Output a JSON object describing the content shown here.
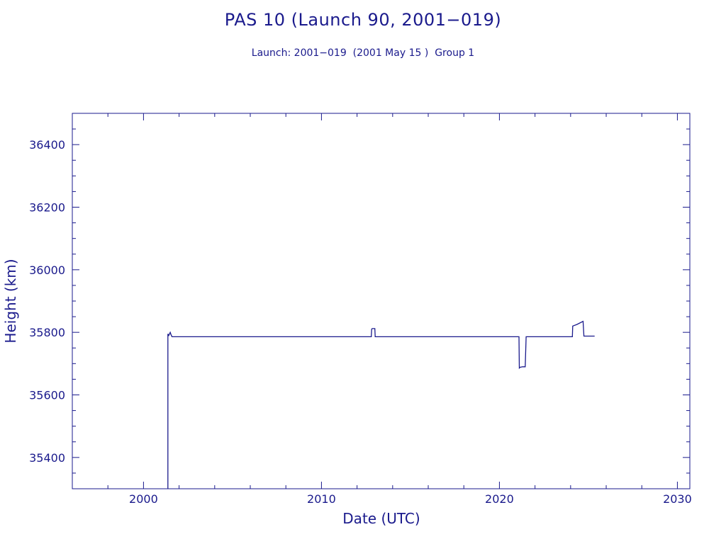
{
  "title": "PAS 10 (Launch 90, 2001−019)",
  "subtitle": "Launch: 2001−019  (2001 May 15 )  Group 1",
  "colors": {
    "axis": "#1a1a8c",
    "line": "#1a1a8c",
    "background": "#ffffff"
  },
  "chart_data": {
    "type": "line",
    "title": "PAS 10 (Launch 90, 2001−019)",
    "subtitle": "Launch: 2001−019  (2001 May 15 )  Group 1",
    "xlabel": "Date (UTC)",
    "ylabel": "Height (km)",
    "xlim": [
      1996,
      2030.7
    ],
    "ylim": [
      35300,
      36500
    ],
    "x_ticks": [
      2000,
      2010,
      2020,
      2030
    ],
    "x_tick_labels": [
      "2000",
      "2010",
      "2020",
      "2030"
    ],
    "y_ticks": [
      35400,
      35600,
      35800,
      36000,
      36200,
      36400
    ],
    "y_tick_labels": [
      "35400",
      "35600",
      "35800",
      "36000",
      "36200",
      "36400"
    ],
    "grid": false,
    "series": [
      {
        "x": [
          2001.37,
          2001.37,
          2001.42,
          2001.5,
          2001.55,
          2001.6,
          2001.8,
          2003.5,
          2006.0,
          2009.0,
          2012.8,
          2012.82,
          2012.85,
          2012.9,
          2013.0,
          2013.02,
          2013.1,
          2016.0,
          2019.0,
          2021.1,
          2021.12,
          2021.15,
          2021.3,
          2021.45,
          2021.5,
          2021.55,
          2022.5,
          2023.0,
          2024.1,
          2024.12,
          2024.35,
          2024.7,
          2024.75,
          2025.0,
          2025.35
        ],
        "y": [
          35300,
          35795,
          35790,
          35800,
          35792,
          35786,
          35786,
          35786,
          35786,
          35786,
          35786,
          35810,
          35812,
          35812,
          35812,
          35786,
          35786,
          35786,
          35786,
          35786,
          35686,
          35688,
          35690,
          35690,
          35786,
          35786,
          35786,
          35786,
          35786,
          35820,
          35825,
          35835,
          35788,
          35788,
          35788
        ]
      }
    ]
  }
}
